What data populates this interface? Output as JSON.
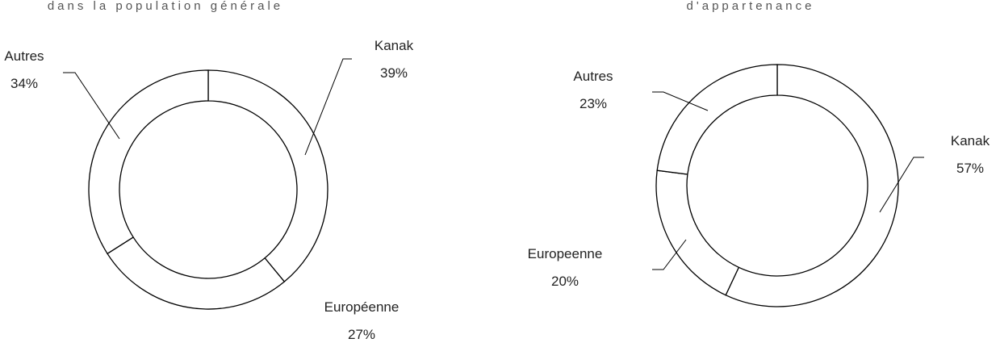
{
  "chart_data": [
    {
      "type": "pie",
      "title": "dans la population générale",
      "categories": [
        "Kanak",
        "Européenne",
        "Autres"
      ],
      "values": [
        39,
        27,
        34
      ],
      "value_labels": [
        "39%",
        "27%",
        "34%"
      ],
      "color": "#ffffff"
    },
    {
      "type": "pie",
      "title": "d'appartenance",
      "categories": [
        "Kanak",
        "Europeenne",
        "Autres"
      ],
      "values": [
        57,
        20,
        23
      ],
      "value_labels": [
        "57%",
        "20%",
        "23%"
      ],
      "color": "#ffffff"
    }
  ]
}
